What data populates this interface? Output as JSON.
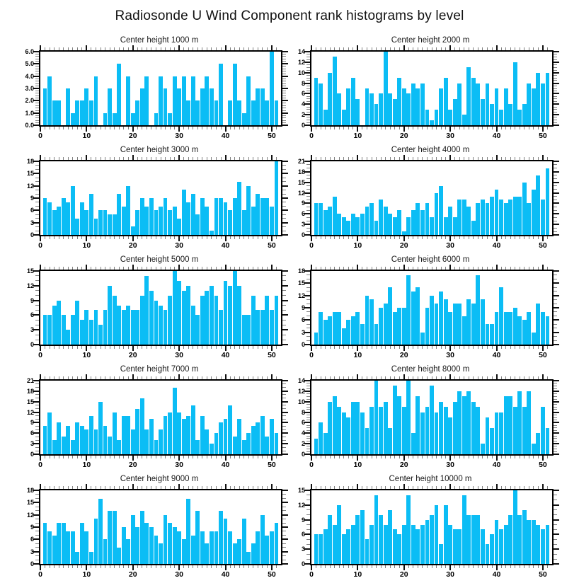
{
  "page_title": "Radiosonde U Wind Component rank histograms by level",
  "colors": {
    "bar": "#0bbdf5",
    "axis": "#000000",
    "major_tick": "#111111",
    "minor_tick": "#808080",
    "background": "#ffffff"
  },
  "x_axis": {
    "min": 0,
    "max": 52,
    "bar_start": 1,
    "ticks": [
      0,
      10,
      20,
      30,
      40,
      50
    ],
    "tick_labels": [
      "0",
      "10",
      "20",
      "30",
      "40",
      "50"
    ],
    "minor_step": 1
  },
  "chart_data": [
    {
      "type": "bar",
      "title": "Center height 1000 m",
      "xlabel": "",
      "ylabel": "",
      "ylim": [
        0,
        6
      ],
      "yticks": [
        0,
        1,
        2,
        3,
        4,
        5,
        6
      ],
      "ytick_labels": [
        "0.0",
        "1.0",
        "2.0",
        "3.0",
        "4.0",
        "5.0",
        "6.0"
      ],
      "yminor_step": 0.2,
      "values": [
        3,
        4,
        2,
        2,
        0,
        3,
        1,
        2,
        2,
        3,
        2,
        4,
        0,
        1,
        3,
        1,
        5,
        0,
        4,
        1,
        2,
        3,
        4,
        0,
        1,
        4,
        3,
        1,
        4,
        3,
        4,
        2,
        4,
        2,
        3,
        4,
        3,
        2,
        5,
        0,
        2,
        5,
        2,
        1,
        4,
        2,
        3,
        3,
        2,
        6,
        2
      ]
    },
    {
      "type": "bar",
      "title": "Center height 2000 m",
      "xlabel": "",
      "ylabel": "",
      "ylim": [
        0,
        14
      ],
      "yticks": [
        0,
        2,
        4,
        6,
        8,
        10,
        12,
        14
      ],
      "ytick_labels": [
        "0",
        "2",
        "4",
        "6",
        "8",
        "10",
        "12",
        "14"
      ],
      "yminor_step": 0.5,
      "values": [
        9,
        8,
        3,
        10,
        13,
        6,
        3,
        7,
        9,
        5,
        0,
        7,
        6,
        4,
        6,
        14,
        6,
        5,
        9,
        7,
        6,
        8,
        7,
        8,
        3,
        1,
        3,
        7,
        9,
        3,
        5,
        8,
        2,
        11,
        9,
        8,
        5,
        8,
        4,
        7,
        3,
        7,
        4,
        12,
        3,
        4,
        8,
        7,
        10,
        8,
        10
      ]
    },
    {
      "type": "bar",
      "title": "Center height 3000 m",
      "xlabel": "",
      "ylabel": "",
      "ylim": [
        0,
        18
      ],
      "yticks": [
        0,
        3,
        6,
        9,
        12,
        15,
        18
      ],
      "ytick_labels": [
        "0",
        "3",
        "6",
        "9",
        "12",
        "15",
        "18"
      ],
      "yminor_step": 1,
      "values": [
        9,
        8,
        6,
        7,
        9,
        8,
        12,
        4,
        8,
        6,
        10,
        4,
        6,
        6,
        5,
        5,
        10,
        7,
        12,
        2,
        6,
        9,
        7,
        9,
        6,
        7,
        9,
        6,
        7,
        4,
        11,
        8,
        10,
        5,
        9,
        7,
        1,
        9,
        9,
        8,
        6,
        9,
        13,
        6,
        12,
        7,
        10,
        9,
        9,
        7,
        18
      ]
    },
    {
      "type": "bar",
      "title": "Center height 4000 m",
      "xlabel": "",
      "ylabel": "",
      "ylim": [
        0,
        21
      ],
      "yticks": [
        0,
        3,
        6,
        9,
        12,
        15,
        18,
        21
      ],
      "ytick_labels": [
        "0",
        "3",
        "6",
        "9",
        "12",
        "15",
        "18",
        "21"
      ],
      "yminor_step": 1,
      "values": [
        9,
        9,
        7,
        8,
        11,
        6,
        5,
        4,
        6,
        5,
        6,
        8,
        9,
        4,
        10,
        8,
        6,
        5,
        7,
        1,
        5,
        7,
        9,
        7,
        9,
        5,
        12,
        14,
        5,
        8,
        5,
        10,
        10,
        8,
        4,
        9,
        10,
        9,
        11,
        13,
        10,
        9,
        10,
        11,
        11,
        15,
        9,
        13,
        17,
        10,
        19
      ]
    },
    {
      "type": "bar",
      "title": "Center height 5000 m",
      "xlabel": "",
      "ylabel": "",
      "ylim": [
        0,
        15
      ],
      "yticks": [
        0,
        3,
        6,
        9,
        12,
        15
      ],
      "ytick_labels": [
        "0",
        "3",
        "6",
        "9",
        "12",
        "15"
      ],
      "yminor_step": 1,
      "values": [
        6,
        6,
        8,
        9,
        6,
        3,
        6,
        9,
        5,
        7,
        5,
        7,
        4,
        7,
        12,
        10,
        8,
        7,
        8,
        7,
        7,
        10,
        14,
        11,
        9,
        8,
        7,
        10,
        15,
        13,
        11,
        12,
        8,
        6,
        10,
        11,
        12,
        10,
        7,
        13,
        12,
        15,
        12,
        6,
        6,
        10,
        7,
        7,
        10,
        7,
        10
      ]
    },
    {
      "type": "bar",
      "title": "Center height 6000 m",
      "xlabel": "",
      "ylabel": "",
      "ylim": [
        0,
        18
      ],
      "yticks": [
        0,
        3,
        6,
        9,
        12,
        15,
        18
      ],
      "ytick_labels": [
        "0",
        "3",
        "6",
        "9",
        "12",
        "15",
        "18"
      ],
      "yminor_step": 1,
      "values": [
        3,
        8,
        6,
        7,
        8,
        8,
        4,
        6,
        7,
        8,
        5,
        12,
        11,
        5,
        9,
        10,
        14,
        8,
        9,
        9,
        17,
        13,
        14,
        3,
        9,
        12,
        10,
        13,
        11,
        8,
        10,
        10,
        7,
        11,
        10,
        17,
        11,
        5,
        5,
        8,
        14,
        8,
        8,
        9,
        7,
        6,
        8,
        3,
        10,
        8,
        7
      ]
    },
    {
      "type": "bar",
      "title": "Center height 7000 m",
      "xlabel": "",
      "ylabel": "",
      "ylim": [
        0,
        21
      ],
      "yticks": [
        0,
        3,
        6,
        9,
        12,
        15,
        18,
        21
      ],
      "ytick_labels": [
        "0",
        "3",
        "6",
        "9",
        "12",
        "15",
        "18",
        "21"
      ],
      "yminor_step": 1,
      "values": [
        8,
        12,
        4,
        9,
        5,
        8,
        4,
        9,
        8,
        7,
        11,
        7,
        15,
        8,
        5,
        12,
        4,
        11,
        11,
        7,
        13,
        16,
        7,
        10,
        4,
        7,
        11,
        12,
        19,
        12,
        10,
        11,
        14,
        4,
        11,
        7,
        3,
        6,
        9,
        10,
        14,
        5,
        10,
        4,
        6,
        8,
        9,
        11,
        5,
        10,
        6
      ]
    },
    {
      "type": "bar",
      "title": "Center height 8000 m",
      "xlabel": "",
      "ylabel": "",
      "ylim": [
        0,
        14
      ],
      "yticks": [
        0,
        2,
        4,
        6,
        8,
        10,
        12,
        14
      ],
      "ytick_labels": [
        "0",
        "2",
        "4",
        "6",
        "8",
        "10",
        "12",
        "14"
      ],
      "yminor_step": 0.5,
      "values": [
        3,
        6,
        4,
        10,
        11,
        9,
        8,
        7,
        10,
        10,
        8,
        5,
        9,
        14,
        9,
        10,
        5,
        13,
        11,
        9,
        14,
        4,
        11,
        8,
        9,
        13,
        8,
        10,
        9,
        7,
        10,
        12,
        11,
        12,
        10,
        9,
        2,
        7,
        5,
        8,
        8,
        11,
        11,
        9,
        12,
        9,
        12,
        2,
        4,
        9,
        5
      ]
    },
    {
      "type": "bar",
      "title": "Center height 9000 m",
      "xlabel": "",
      "ylabel": "",
      "ylim": [
        0,
        18
      ],
      "yticks": [
        0,
        3,
        6,
        9,
        12,
        15,
        18
      ],
      "ytick_labels": [
        "0",
        "3",
        "6",
        "9",
        "12",
        "15",
        "18"
      ],
      "yminor_step": 1,
      "values": [
        10,
        8,
        7,
        10,
        10,
        8,
        8,
        3,
        10,
        8,
        3,
        11,
        16,
        6,
        13,
        13,
        4,
        9,
        6,
        12,
        9,
        13,
        10,
        9,
        7,
        5,
        12,
        10,
        9,
        8,
        6,
        16,
        7,
        13,
        8,
        5,
        8,
        8,
        13,
        11,
        8,
        5,
        6,
        11,
        3,
        5,
        8,
        12,
        7,
        8,
        10
      ]
    },
    {
      "type": "bar",
      "title": "Center height 10000 m",
      "xlabel": "",
      "ylabel": "",
      "ylim": [
        0,
        15
      ],
      "yticks": [
        0,
        3,
        6,
        9,
        12,
        15
      ],
      "ytick_labels": [
        "0",
        "3",
        "6",
        "9",
        "12",
        "15"
      ],
      "yminor_step": 1,
      "values": [
        6,
        6,
        7,
        10,
        8,
        12,
        6,
        7,
        8,
        10,
        11,
        5,
        8,
        14,
        10,
        8,
        11,
        7,
        6,
        8,
        14,
        8,
        7,
        8,
        9,
        10,
        12,
        4,
        12,
        8,
        7,
        7,
        14,
        10,
        10,
        10,
        7,
        4,
        6,
        9,
        7,
        8,
        10,
        15,
        10,
        11,
        9,
        9,
        8,
        7,
        8
      ]
    }
  ]
}
